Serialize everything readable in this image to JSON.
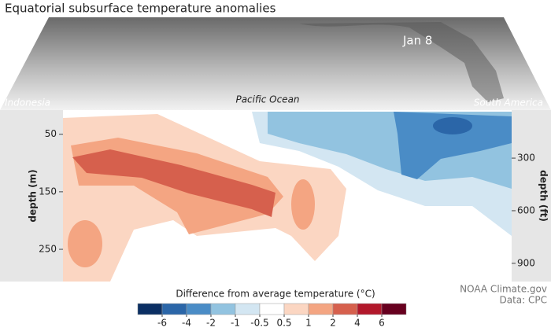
{
  "chart_data": {
    "type": "contour",
    "title": "Equatorial subsurface temperature anomalies",
    "map_labels": {
      "date": "Jan 8",
      "west": "Indonesia",
      "center": "Pacific Ocean",
      "east": "South America"
    },
    "y_label": "depth (m)",
    "ylim": [
      8,
      306
    ],
    "yticks": [
      50,
      150,
      250
    ],
    "y2_label": "depth (ft)",
    "y2lim": [
      26,
      1004
    ],
    "y2ticks": [
      300,
      600,
      900
    ],
    "colorbar_title": "Difference from average temperature (°C)",
    "levels": [
      -6,
      -4,
      -2,
      -1,
      -0.5,
      0.5,
      1,
      2,
      4,
      6
    ],
    "colors": [
      "#0b2f63",
      "#2b66a8",
      "#4a8cc6",
      "#92c3e0",
      "#d3e6f2",
      "#ffffff",
      "#fbd6c2",
      "#f4a582",
      "#d6604d",
      "#b2182b",
      "#67001f"
    ],
    "credits": [
      "NOAA Climate.gov",
      "Data: CPC"
    ]
  }
}
